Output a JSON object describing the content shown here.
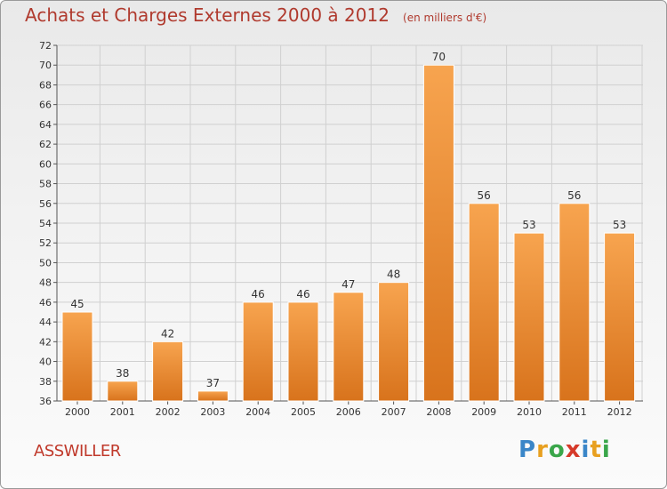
{
  "title": "Achats et Charges Externes 2000 à 2012",
  "unit_note": "(en milliers d'€)",
  "commune": "ASSWILLER",
  "logo": {
    "text": "Proxiti",
    "letters": [
      {
        "char": "P",
        "color": "#3a86c8"
      },
      {
        "char": "r",
        "color": "#e8a020"
      },
      {
        "char": "o",
        "color": "#3aa64a"
      },
      {
        "char": "x",
        "color": "#d63a2a"
      },
      {
        "char": "i",
        "color": "#3a86c8"
      },
      {
        "char": "t",
        "color": "#e8a020"
      },
      {
        "char": "i",
        "color": "#3aa64a"
      }
    ]
  },
  "colors": {
    "bar_light": "#f7a44f",
    "bar_dark": "#d8731c",
    "title": "#b03a2e",
    "grid": "#d0d0d0"
  },
  "chart_data": {
    "type": "bar",
    "title": "Achats et Charges Externes 2000 à 2012",
    "categories": [
      "2000",
      "2001",
      "2002",
      "2003",
      "2004",
      "2005",
      "2006",
      "2007",
      "2008",
      "2009",
      "2010",
      "2011",
      "2012"
    ],
    "values": [
      45,
      38,
      42,
      37,
      46,
      46,
      47,
      48,
      70,
      56,
      53,
      56,
      53
    ],
    "ylim": [
      36,
      72
    ],
    "yticks": [
      36,
      38,
      40,
      42,
      44,
      46,
      48,
      50,
      52,
      54,
      56,
      58,
      60,
      62,
      64,
      66,
      68,
      70,
      72
    ],
    "grid": true,
    "xlabel": "",
    "ylabel": ""
  }
}
